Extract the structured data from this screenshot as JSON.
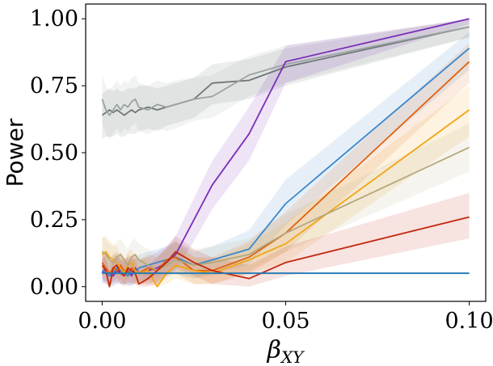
{
  "chart_data": {
    "type": "line",
    "title": "",
    "xlabel": "β",
    "xlabel_sub": "XY",
    "ylabel": "Power",
    "xlim": [
      -0.0045,
      0.1045
    ],
    "ylim": [
      -0.055,
      1.055
    ],
    "xticks": [
      0.0,
      0.05,
      0.1
    ],
    "xtick_labels": [
      "0.00",
      "0.05",
      "0.10"
    ],
    "yticks": [
      0.0,
      0.25,
      0.5,
      0.75,
      1.0
    ],
    "ytick_labels": [
      "0.00",
      "0.25",
      "0.50",
      "0.75",
      "1.00"
    ],
    "grid": false,
    "legend": "none",
    "series": [
      {
        "name": "gray-dark",
        "color": "#6f7676",
        "x": [
          0,
          0.001,
          0.002,
          0.003,
          0.004,
          0.005,
          0.006,
          0.007,
          0.008,
          0.009,
          0.01,
          0.0125,
          0.015,
          0.0175,
          0.02,
          0.025,
          0.03,
          0.04,
          0.05,
          0.1
        ],
        "y": [
          0.64,
          0.65,
          0.66,
          0.65,
          0.66,
          0.65,
          0.64,
          0.65,
          0.66,
          0.65,
          0.66,
          0.67,
          0.66,
          0.67,
          0.68,
          0.7,
          0.76,
          0.77,
          0.82,
          0.97
        ],
        "lower": [
          0.55,
          0.56,
          0.56,
          0.56,
          0.57,
          0.56,
          0.56,
          0.57,
          0.57,
          0.57,
          0.58,
          0.59,
          0.58,
          0.6,
          0.61,
          0.63,
          0.68,
          0.7,
          0.75,
          0.93
        ],
        "upper": [
          0.72,
          0.73,
          0.74,
          0.73,
          0.74,
          0.73,
          0.73,
          0.74,
          0.74,
          0.74,
          0.75,
          0.75,
          0.74,
          0.75,
          0.76,
          0.78,
          0.83,
          0.85,
          0.89,
          1.0
        ]
      },
      {
        "name": "gray-light",
        "color": "#9aa3a0",
        "x": [
          0,
          0.001,
          0.002,
          0.003,
          0.004,
          0.005,
          0.006,
          0.007,
          0.008,
          0.009,
          0.01,
          0.0125,
          0.015,
          0.0175,
          0.02,
          0.025,
          0.03,
          0.04,
          0.05,
          0.1
        ],
        "y": [
          0.7,
          0.66,
          0.64,
          0.66,
          0.68,
          0.66,
          0.68,
          0.67,
          0.69,
          0.7,
          0.67,
          0.66,
          0.68,
          0.67,
          0.68,
          0.7,
          0.71,
          0.79,
          0.83,
          0.97
        ],
        "lower": [
          0.61,
          0.57,
          0.55,
          0.57,
          0.59,
          0.57,
          0.59,
          0.58,
          0.6,
          0.61,
          0.58,
          0.57,
          0.59,
          0.58,
          0.59,
          0.62,
          0.63,
          0.71,
          0.76,
          0.93
        ],
        "upper": [
          0.79,
          0.75,
          0.73,
          0.75,
          0.77,
          0.75,
          0.77,
          0.76,
          0.78,
          0.79,
          0.76,
          0.75,
          0.77,
          0.76,
          0.77,
          0.78,
          0.79,
          0.86,
          0.9,
          1.0
        ]
      },
      {
        "name": "purple",
        "color": "#7b2fb8",
        "x": [
          0,
          0.001,
          0.002,
          0.003,
          0.004,
          0.005,
          0.006,
          0.007,
          0.008,
          0.009,
          0.01,
          0.0125,
          0.015,
          0.0175,
          0.02,
          0.025,
          0.03,
          0.04,
          0.05,
          0.1
        ],
        "y": [
          0.05,
          0.07,
          0.05,
          0.04,
          0.06,
          0.05,
          0.05,
          0.06,
          0.04,
          0.07,
          0.05,
          0.06,
          0.07,
          0.09,
          0.12,
          0.25,
          0.38,
          0.57,
          0.84,
          1.0
        ],
        "lower": [
          0.01,
          0.02,
          0.01,
          0.0,
          0.01,
          0.01,
          0.01,
          0.01,
          0.0,
          0.02,
          0.01,
          0.01,
          0.02,
          0.04,
          0.06,
          0.17,
          0.29,
          0.47,
          0.76,
          0.98
        ],
        "upper": [
          0.1,
          0.12,
          0.1,
          0.09,
          0.11,
          0.1,
          0.1,
          0.11,
          0.09,
          0.12,
          0.1,
          0.11,
          0.13,
          0.15,
          0.19,
          0.33,
          0.47,
          0.67,
          0.9,
          1.0
        ]
      },
      {
        "name": "blue",
        "color": "#3a86cc",
        "x": [
          0,
          0.001,
          0.002,
          0.003,
          0.004,
          0.005,
          0.006,
          0.007,
          0.008,
          0.009,
          0.01,
          0.0125,
          0.015,
          0.0175,
          0.02,
          0.025,
          0.03,
          0.04,
          0.05,
          0.1
        ],
        "y": [
          0.06,
          0.05,
          0.04,
          0.05,
          0.07,
          0.06,
          0.05,
          0.04,
          0.06,
          0.05,
          0.07,
          0.08,
          0.09,
          0.1,
          0.11,
          0.08,
          0.1,
          0.14,
          0.31,
          0.89
        ],
        "lower": [
          0.02,
          0.01,
          0.0,
          0.01,
          0.02,
          0.01,
          0.01,
          0.0,
          0.01,
          0.01,
          0.02,
          0.03,
          0.04,
          0.05,
          0.05,
          0.03,
          0.05,
          0.08,
          0.23,
          0.81
        ],
        "upper": [
          0.11,
          0.1,
          0.09,
          0.1,
          0.12,
          0.11,
          0.1,
          0.09,
          0.11,
          0.1,
          0.12,
          0.13,
          0.14,
          0.15,
          0.17,
          0.13,
          0.15,
          0.21,
          0.4,
          0.95
        ]
      },
      {
        "name": "orange-dark",
        "color": "#e0610e",
        "x": [
          0,
          0.001,
          0.002,
          0.003,
          0.004,
          0.005,
          0.006,
          0.007,
          0.008,
          0.009,
          0.01,
          0.0125,
          0.015,
          0.0175,
          0.02,
          0.025,
          0.03,
          0.04,
          0.05,
          0.1
        ],
        "y": [
          0.09,
          0.07,
          0.05,
          0.07,
          0.06,
          0.08,
          0.06,
          0.05,
          0.07,
          0.06,
          0.05,
          0.07,
          0.06,
          0.1,
          0.11,
          0.06,
          0.06,
          0.11,
          0.2,
          0.84
        ],
        "lower": [
          0.04,
          0.02,
          0.01,
          0.02,
          0.01,
          0.03,
          0.01,
          0.01,
          0.02,
          0.01,
          0.01,
          0.02,
          0.01,
          0.05,
          0.05,
          0.01,
          0.01,
          0.05,
          0.13,
          0.76
        ],
        "upper": [
          0.14,
          0.12,
          0.1,
          0.12,
          0.11,
          0.13,
          0.11,
          0.1,
          0.12,
          0.11,
          0.1,
          0.12,
          0.11,
          0.15,
          0.17,
          0.11,
          0.11,
          0.17,
          0.28,
          0.91
        ]
      },
      {
        "name": "amber",
        "color": "#f2a413",
        "x": [
          0,
          0.001,
          0.002,
          0.003,
          0.004,
          0.005,
          0.006,
          0.007,
          0.008,
          0.009,
          0.01,
          0.0125,
          0.015,
          0.0175,
          0.02,
          0.025,
          0.03,
          0.04,
          0.05,
          0.1
        ],
        "y": [
          0.12,
          0.13,
          0.11,
          0.1,
          0.09,
          0.07,
          0.05,
          0.08,
          0.09,
          0.06,
          0.05,
          0.06,
          0.0,
          0.05,
          0.08,
          0.06,
          0.05,
          0.1,
          0.16,
          0.66
        ],
        "lower": [
          0.06,
          0.07,
          0.05,
          0.05,
          0.04,
          0.02,
          0.01,
          0.03,
          0.04,
          0.01,
          0.01,
          0.01,
          0.0,
          0.01,
          0.03,
          0.01,
          0.01,
          0.05,
          0.09,
          0.56
        ],
        "upper": [
          0.18,
          0.19,
          0.17,
          0.16,
          0.15,
          0.12,
          0.1,
          0.13,
          0.14,
          0.11,
          0.1,
          0.11,
          0.05,
          0.1,
          0.14,
          0.11,
          0.1,
          0.16,
          0.24,
          0.75
        ]
      },
      {
        "name": "tan",
        "color": "#b5a77a",
        "x": [
          0,
          0.001,
          0.002,
          0.003,
          0.004,
          0.005,
          0.006,
          0.007,
          0.008,
          0.009,
          0.01,
          0.0125,
          0.015,
          0.0175,
          0.02,
          0.025,
          0.03,
          0.04,
          0.05,
          0.1
        ],
        "y": [
          0.13,
          0.12,
          0.1,
          0.09,
          0.11,
          0.12,
          0.1,
          0.08,
          0.11,
          0.12,
          0.1,
          0.08,
          0.06,
          0.08,
          0.1,
          0.08,
          0.09,
          0.12,
          0.2,
          0.52
        ],
        "lower": [
          0.07,
          0.06,
          0.05,
          0.04,
          0.05,
          0.06,
          0.05,
          0.03,
          0.05,
          0.06,
          0.05,
          0.03,
          0.01,
          0.03,
          0.05,
          0.03,
          0.04,
          0.06,
          0.13,
          0.43
        ],
        "upper": [
          0.19,
          0.18,
          0.16,
          0.15,
          0.17,
          0.18,
          0.16,
          0.14,
          0.17,
          0.18,
          0.16,
          0.14,
          0.12,
          0.14,
          0.16,
          0.14,
          0.15,
          0.18,
          0.27,
          0.61
        ]
      },
      {
        "name": "red",
        "color": "#c2290c",
        "x": [
          0,
          0.001,
          0.002,
          0.003,
          0.004,
          0.005,
          0.006,
          0.007,
          0.008,
          0.009,
          0.01,
          0.0125,
          0.015,
          0.0175,
          0.02,
          0.025,
          0.03,
          0.04,
          0.05,
          0.1
        ],
        "y": [
          0.08,
          0.06,
          0.0,
          0.07,
          0.08,
          0.05,
          0.04,
          0.07,
          0.06,
          0.05,
          0.01,
          0.03,
          0.06,
          0.09,
          0.13,
          0.09,
          0.06,
          0.03,
          0.09,
          0.26
        ],
        "lower": [
          0.03,
          0.01,
          0.0,
          0.02,
          0.03,
          0.01,
          0.0,
          0.02,
          0.01,
          0.01,
          0.0,
          0.0,
          0.01,
          0.04,
          0.07,
          0.04,
          0.01,
          0.0,
          0.04,
          0.18
        ],
        "upper": [
          0.13,
          0.11,
          0.05,
          0.12,
          0.13,
          0.1,
          0.09,
          0.12,
          0.11,
          0.1,
          0.06,
          0.08,
          0.11,
          0.14,
          0.19,
          0.14,
          0.11,
          0.08,
          0.15,
          0.35
        ]
      },
      {
        "name": "flat-blue",
        "color": "#1f77b4",
        "x": [
          0,
          0.01,
          0.02,
          0.03,
          0.04,
          0.05,
          0.1
        ],
        "y": [
          0.05,
          0.05,
          0.05,
          0.05,
          0.05,
          0.05,
          0.05
        ]
      }
    ]
  }
}
